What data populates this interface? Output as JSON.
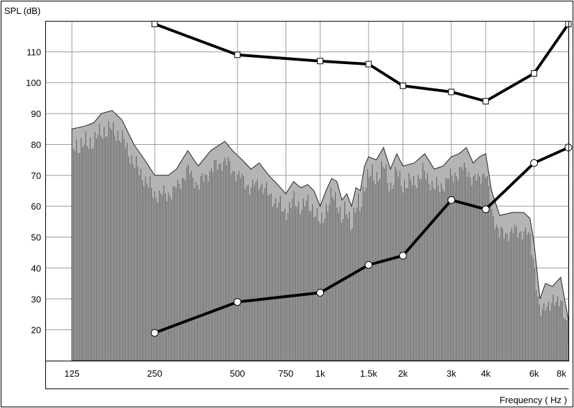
{
  "chart_data": {
    "type": "line",
    "title": "",
    "ylabel": "SPL (dB)",
    "xlabel": "Frequency ( Hz )",
    "x_scale": "log",
    "xlim": [
      100,
      8000
    ],
    "ylim": [
      10,
      120
    ],
    "grid": true,
    "x_ticks": [
      {
        "value": 125,
        "label": "125"
      },
      {
        "value": 250,
        "label": "250"
      },
      {
        "value": 500,
        "label": "500"
      },
      {
        "value": 750,
        "label": "750"
      },
      {
        "value": 1000,
        "label": "1k"
      },
      {
        "value": 1500,
        "label": "1.5k"
      },
      {
        "value": 2000,
        "label": "2k"
      },
      {
        "value": 3000,
        "label": "3k"
      },
      {
        "value": 4000,
        "label": "4k"
      },
      {
        "value": 6000,
        "label": "6k"
      },
      {
        "value": 8000,
        "label": "8k"
      }
    ],
    "y_ticks": [
      20,
      30,
      40,
      50,
      60,
      70,
      80,
      90,
      100,
      110
    ],
    "colors": {
      "line": "#000000",
      "fill": "#b4b4b4",
      "bars": "#5a5a5a",
      "grid": "#9a9a9a"
    },
    "series": [
      {
        "marker": "square",
        "x": [
          250,
          500,
          1000,
          1500,
          2000,
          3000,
          4000,
          6000,
          8000
        ],
        "y": [
          119,
          109,
          107,
          106,
          99,
          97,
          94,
          103,
          119
        ]
      },
      {
        "marker": "circle",
        "x": [
          250,
          500,
          1000,
          1500,
          2000,
          3000,
          4000,
          6000,
          8000
        ],
        "y": [
          19,
          29,
          32,
          41,
          44,
          62,
          59,
          74,
          79
        ]
      }
    ],
    "spectrum": {
      "x": [
        125,
        140,
        150,
        160,
        175,
        190,
        210,
        230,
        250,
        280,
        300,
        330,
        360,
        400,
        450,
        480,
        520,
        560,
        600,
        650,
        700,
        750,
        800,
        850,
        900,
        950,
        1000,
        1050,
        1100,
        1150,
        1200,
        1250,
        1300,
        1350,
        1400,
        1450,
        1500,
        1600,
        1700,
        1800,
        1900,
        2000,
        2200,
        2400,
        2600,
        2800,
        3000,
        3200,
        3400,
        3600,
        3800,
        4000,
        4200,
        4500,
        5000,
        5500,
        5800,
        6000,
        6300,
        6600,
        7000,
        7500,
        8000
      ],
      "y": [
        85,
        86,
        87,
        90,
        91,
        88,
        80,
        75,
        70,
        70,
        72,
        78,
        73,
        78,
        81,
        78,
        75,
        72,
        74,
        70,
        67,
        64,
        68,
        66,
        67,
        65,
        60,
        65,
        69,
        68,
        62,
        64,
        60,
        66,
        65,
        73,
        76,
        75,
        79,
        72,
        77,
        73,
        74,
        77,
        72,
        73,
        76,
        77,
        79,
        74,
        76,
        77,
        65,
        57,
        58,
        58,
        56,
        48,
        30,
        35,
        34,
        37,
        23
      ]
    }
  }
}
